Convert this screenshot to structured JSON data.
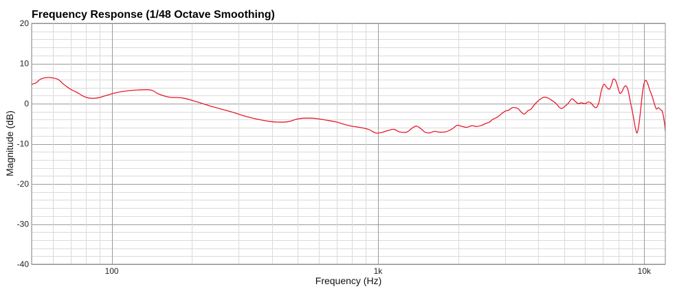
{
  "chart_data": {
    "type": "line",
    "title": "Frequency Response (1/48 Octave Smoothing)",
    "xlabel": "Frequency (Hz)",
    "ylabel": "Magnitude (dB)",
    "x_scale": "log",
    "xlim": [
      50,
      12000
    ],
    "ylim": [
      -40,
      20
    ],
    "grid": true,
    "legend": "none",
    "x_ticks": [
      {
        "value": 100,
        "label": "100"
      },
      {
        "value": 1000,
        "label": "1k"
      },
      {
        "value": 10000,
        "label": "10k"
      }
    ],
    "y_ticks": [
      {
        "value": 20,
        "label": "20"
      },
      {
        "value": 10,
        "label": "10"
      },
      {
        "value": 0,
        "label": "0"
      },
      {
        "value": -10,
        "label": "-10"
      },
      {
        "value": -20,
        "label": "-20"
      },
      {
        "value": -30,
        "label": "-30"
      },
      {
        "value": -40,
        "label": "-40"
      }
    ],
    "series": [
      {
        "color": "#e8192c",
        "points": [
          [
            50,
            4.8
          ],
          [
            52,
            5.2
          ],
          [
            54,
            6.1
          ],
          [
            57,
            6.5
          ],
          [
            60,
            6.4
          ],
          [
            63,
            6.0
          ],
          [
            66,
            4.8
          ],
          [
            70,
            3.6
          ],
          [
            74,
            2.8
          ],
          [
            78,
            1.9
          ],
          [
            82,
            1.4
          ],
          [
            88,
            1.4
          ],
          [
            95,
            2.0
          ],
          [
            105,
            2.8
          ],
          [
            115,
            3.2
          ],
          [
            125,
            3.4
          ],
          [
            140,
            3.4
          ],
          [
            150,
            2.4
          ],
          [
            165,
            1.6
          ],
          [
            185,
            1.4
          ],
          [
            210,
            0.4
          ],
          [
            240,
            -0.8
          ],
          [
            280,
            -2.0
          ],
          [
            320,
            -3.2
          ],
          [
            360,
            -4.0
          ],
          [
            390,
            -4.4
          ],
          [
            420,
            -4.6
          ],
          [
            460,
            -4.5
          ],
          [
            500,
            -3.8
          ],
          [
            550,
            -3.6
          ],
          [
            600,
            -3.8
          ],
          [
            650,
            -4.2
          ],
          [
            700,
            -4.6
          ],
          [
            780,
            -5.5
          ],
          [
            850,
            -5.9
          ],
          [
            920,
            -6.4
          ],
          [
            980,
            -7.3
          ],
          [
            1030,
            -7.2
          ],
          [
            1090,
            -6.7
          ],
          [
            1150,
            -6.4
          ],
          [
            1200,
            -7.0
          ],
          [
            1280,
            -7.1
          ],
          [
            1350,
            -6.0
          ],
          [
            1400,
            -5.6
          ],
          [
            1470,
            -6.6
          ],
          [
            1500,
            -7.1
          ],
          [
            1560,
            -7.3
          ],
          [
            1630,
            -6.9
          ],
          [
            1700,
            -7.1
          ],
          [
            1800,
            -7.0
          ],
          [
            1900,
            -6.3
          ],
          [
            1980,
            -5.4
          ],
          [
            2050,
            -5.6
          ],
          [
            2150,
            -5.9
          ],
          [
            2250,
            -5.5
          ],
          [
            2350,
            -5.7
          ],
          [
            2450,
            -5.4
          ],
          [
            2550,
            -4.9
          ],
          [
            2620,
            -4.6
          ],
          [
            2700,
            -3.9
          ],
          [
            2800,
            -3.4
          ],
          [
            2900,
            -2.6
          ],
          [
            3000,
            -1.9
          ],
          [
            3100,
            -1.6
          ],
          [
            3200,
            -1.0
          ],
          [
            3350,
            -1.2
          ],
          [
            3450,
            -2.1
          ],
          [
            3550,
            -2.6
          ],
          [
            3650,
            -1.8
          ],
          [
            3750,
            -1.4
          ],
          [
            3900,
            0.0
          ],
          [
            4050,
            1.0
          ],
          [
            4200,
            1.6
          ],
          [
            4350,
            1.4
          ],
          [
            4500,
            0.8
          ],
          [
            4650,
            0.1
          ],
          [
            4800,
            -0.9
          ],
          [
            4900,
            -1.2
          ],
          [
            5050,
            -0.6
          ],
          [
            5200,
            0.2
          ],
          [
            5350,
            1.2
          ],
          [
            5500,
            0.6
          ],
          [
            5650,
            0.0
          ],
          [
            5800,
            0.2
          ],
          [
            6000,
            0.0
          ],
          [
            6150,
            0.4
          ],
          [
            6300,
            0.2
          ],
          [
            6450,
            -0.6
          ],
          [
            6600,
            -1.0
          ],
          [
            6750,
            0.2
          ],
          [
            6900,
            3.2
          ],
          [
            7050,
            4.8
          ],
          [
            7200,
            4.2
          ],
          [
            7400,
            3.6
          ],
          [
            7550,
            4.9
          ],
          [
            7650,
            6.1
          ],
          [
            7800,
            5.8
          ],
          [
            7950,
            4.2
          ],
          [
            8100,
            2.6
          ],
          [
            8250,
            3.0
          ],
          [
            8400,
            4.1
          ],
          [
            8550,
            4.4
          ],
          [
            8700,
            3.3
          ],
          [
            8900,
            0.0
          ],
          [
            9100,
            -3.2
          ],
          [
            9250,
            -5.9
          ],
          [
            9400,
            -7.3
          ],
          [
            9550,
            -5.2
          ],
          [
            9700,
            -1.4
          ],
          [
            9850,
            2.8
          ],
          [
            10000,
            5.2
          ],
          [
            10150,
            5.8
          ],
          [
            10300,
            5.0
          ],
          [
            10500,
            3.3
          ],
          [
            10700,
            1.9
          ],
          [
            10900,
            0.1
          ],
          [
            11100,
            -1.3
          ],
          [
            11300,
            -1.0
          ],
          [
            11500,
            -1.5
          ],
          [
            11700,
            -2.0
          ],
          [
            11900,
            -4.6
          ],
          [
            12000,
            -6.8
          ]
        ]
      }
    ]
  }
}
